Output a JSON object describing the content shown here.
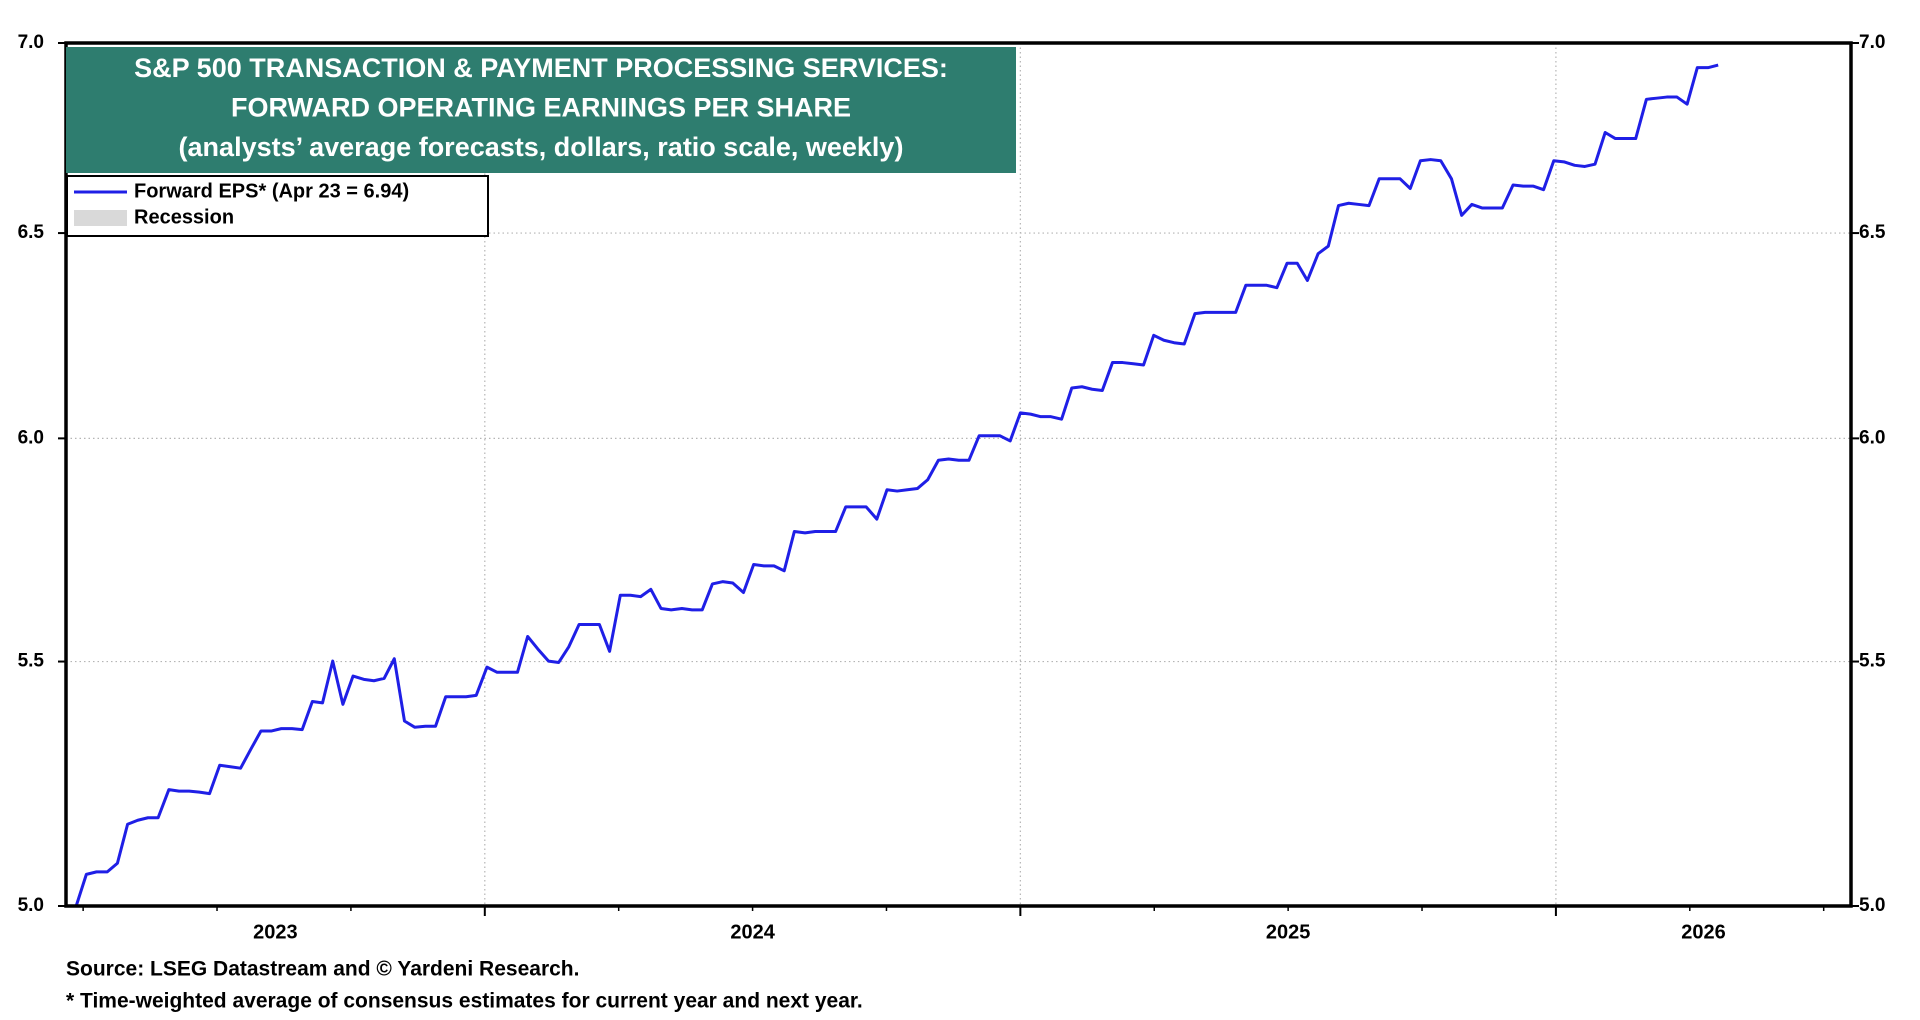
{
  "chart_data": {
    "type": "line",
    "title": [
      "S&P 500 TRANSACTION & PAYMENT PROCESSING SERVICES:",
      "FORWARD OPERATING EARNINGS PER SHARE",
      "(analysts’ average forecasts, dollars, ratio scale, weekly)"
    ],
    "title_box_color": "#2e7d6f",
    "footnotes": [
      "Source: LSEG Datastream and © Yardeni Research.",
      "* Time-weighted average of consensus estimates for current year and next year."
    ],
    "yscale": "log",
    "grid": true,
    "legend": "upper left",
    "ylim": [
      5,
      7
    ],
    "yticks": [
      {
        "value": 5,
        "label": "5.0"
      },
      {
        "value": 5.5,
        "label": "5.5"
      },
      {
        "value": 6,
        "label": "6.0"
      },
      {
        "value": 6.5,
        "label": "6.5"
      },
      {
        "value": 7,
        "label": "7.0"
      }
    ],
    "xlim": [
      2023.218,
      2026.551
    ],
    "xticks": [
      2024,
      2025,
      2026
    ],
    "xtick_labels": [
      "2023",
      "2024",
      "2025",
      "2026"
    ],
    "recession_legend": {
      "name": "Recession",
      "color": "#d9d9d9"
    },
    "x": [
      2023.218,
      2023.237,
      2023.256,
      2023.275,
      2023.295,
      2023.314,
      2023.333,
      2023.352,
      2023.371,
      2023.39,
      2023.41,
      2023.429,
      2023.448,
      2023.467,
      2023.486,
      2023.505,
      2023.525,
      2023.544,
      2023.563,
      2023.582,
      2023.601,
      2023.62,
      2023.64,
      2023.659,
      2023.678,
      2023.697,
      2023.716,
      2023.735,
      2023.754,
      2023.774,
      2023.793,
      2023.812,
      2023.831,
      2023.85,
      2023.869,
      2023.889,
      2023.908,
      2023.927,
      2023.946,
      2023.965,
      2023.984,
      2024.004,
      2024.023,
      2024.042,
      2024.061,
      2024.08,
      2024.099,
      2024.119,
      2024.138,
      2024.157,
      2024.176,
      2024.195,
      2024.214,
      2024.233,
      2024.253,
      2024.272,
      2024.291,
      2024.31,
      2024.329,
      2024.348,
      2024.368,
      2024.387,
      2024.406,
      2024.425,
      2024.444,
      2024.463,
      2024.483,
      2024.502,
      2024.521,
      2024.54,
      2024.559,
      2024.578,
      2024.598,
      2024.617,
      2024.636,
      2024.655,
      2024.674,
      2024.693,
      2024.712,
      2024.732,
      2024.751,
      2024.77,
      2024.789,
      2024.808,
      2024.827,
      2024.847,
      2024.866,
      2024.885,
      2024.904,
      2024.923,
      2024.942,
      2024.962,
      2024.981,
      2025.0,
      2025.019,
      2025.038,
      2025.057,
      2025.077,
      2025.096,
      2025.115,
      2025.134,
      2025.153,
      2025.172,
      2025.191,
      2025.211,
      2025.23,
      2025.249,
      2025.268,
      2025.287,
      2025.306,
      2025.326,
      2025.345,
      2025.364,
      2025.383,
      2025.402,
      2025.421,
      2025.441,
      2025.46,
      2025.479,
      2025.498,
      2025.517,
      2025.536,
      2025.556,
      2025.575,
      2025.594,
      2025.613,
      2025.632,
      2025.651,
      2025.67,
      2025.69,
      2025.709,
      2025.728,
      2025.747,
      2025.766,
      2025.785,
      2025.805,
      2025.824,
      2025.843,
      2025.862,
      2025.881,
      2025.9,
      2025.92,
      2025.939,
      2025.958,
      2025.977,
      2025.996,
      2026.015,
      2026.035,
      2026.054,
      2026.073,
      2026.092,
      2026.111,
      2026.13,
      2026.149,
      2026.169,
      2026.188,
      2026.207,
      2026.226,
      2026.245,
      2026.264,
      2026.284,
      2026.303
    ],
    "series": [
      {
        "name": "Forward EPS* (Apr 23 = 6.94)",
        "color": "#1f1fe6",
        "values": [
          5.0,
          5.0,
          5.062,
          5.067,
          5.067,
          5.084,
          5.162,
          5.17,
          5.175,
          5.175,
          5.232,
          5.229,
          5.229,
          5.227,
          5.224,
          5.282,
          5.279,
          5.276,
          5.315,
          5.353,
          5.353,
          5.358,
          5.358,
          5.356,
          5.415,
          5.412,
          5.501,
          5.409,
          5.469,
          5.462,
          5.459,
          5.464,
          5.506,
          5.374,
          5.361,
          5.363,
          5.363,
          5.425,
          5.425,
          5.425,
          5.428,
          5.488,
          5.477,
          5.477,
          5.477,
          5.554,
          5.527,
          5.501,
          5.498,
          5.532,
          5.58,
          5.58,
          5.58,
          5.522,
          5.644,
          5.644,
          5.641,
          5.657,
          5.615,
          5.612,
          5.615,
          5.612,
          5.612,
          5.669,
          5.674,
          5.671,
          5.65,
          5.712,
          5.709,
          5.709,
          5.698,
          5.786,
          5.783,
          5.786,
          5.786,
          5.786,
          5.842,
          5.842,
          5.842,
          5.814,
          5.881,
          5.878,
          5.881,
          5.884,
          5.904,
          5.949,
          5.952,
          5.949,
          5.949,
          6.006,
          6.006,
          6.006,
          5.994,
          6.06,
          6.057,
          6.051,
          6.051,
          6.045,
          6.119,
          6.122,
          6.116,
          6.113,
          6.18,
          6.18,
          6.177,
          6.174,
          6.246,
          6.234,
          6.228,
          6.225,
          6.299,
          6.302,
          6.302,
          6.302,
          6.302,
          6.369,
          6.369,
          6.369,
          6.363,
          6.424,
          6.424,
          6.381,
          6.448,
          6.467,
          6.57,
          6.576,
          6.573,
          6.57,
          6.639,
          6.639,
          6.639,
          6.614,
          6.686,
          6.689,
          6.686,
          6.639,
          6.545,
          6.573,
          6.564,
          6.564,
          6.564,
          6.623,
          6.62,
          6.62,
          6.611,
          6.686,
          6.683,
          6.674,
          6.671,
          6.677,
          6.76,
          6.744,
          6.744,
          6.744,
          6.848,
          6.851,
          6.854,
          6.854,
          6.835,
          6.933,
          6.933,
          6.94
        ]
      }
    ]
  }
}
